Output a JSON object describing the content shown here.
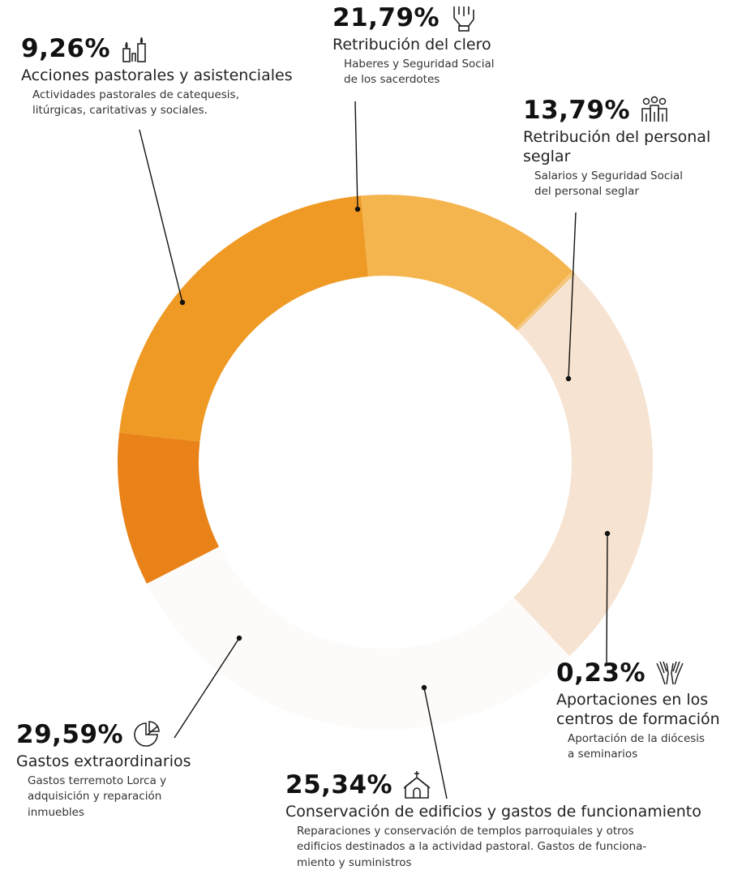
{
  "chart_data": {
    "type": "pie",
    "variant": "donut",
    "slices": [
      {
        "label": "Acciones pastorales y asistenciales",
        "value": 9.26,
        "display": "9,26%",
        "color": "#e98218",
        "description": "Actividades pastorales de catequesis, litúrgicas, caritativas y sociales.",
        "icon": "candles-icon"
      },
      {
        "label": "Retribución del clero",
        "value": 21.79,
        "display": "21,79%",
        "color": "#ef9a24",
        "description": "Haberes y Seguridad Social de los sacerdotes",
        "icon": "priest-hand-icon"
      },
      {
        "label": "Retribución del personal seglar",
        "value": 13.79,
        "display": "13,79%",
        "color": "#f4b54e",
        "description": "Salarios y Seguridad Social del personal seglar",
        "icon": "people-icon"
      },
      {
        "label": "Aportaciones en los centros de formación",
        "value": 0.23,
        "display": "0,23%",
        "color": "#f5c77e",
        "description": "Aportación de la diócesis a seminarios",
        "icon": "praying-hands-icon"
      },
      {
        "label": "Conservación de edificios y gastos de funcionamiento",
        "value": 25.34,
        "display": "25,34%",
        "color": "#f6e3d1",
        "description": "Reparaciones y conservación de templos parroquiales y otros edificios destinados a la actividad pastoral. Gastos de funcionamiento y suministros",
        "icon": "church-icon"
      },
      {
        "label": "Gastos extraordinarios",
        "value": 29.59,
        "display": "29,59%",
        "color": "#fdfbf9",
        "description": "Gastos terremoto Lorca y adquisición y reparación inmuebles",
        "icon": "pie-chart-icon"
      }
    ]
  },
  "callouts": {
    "acciones": {
      "pct": "9,26%",
      "title": "Acciones pastorales y asistenciales",
      "desc_lines": [
        "Actividades pastorales de catequesis,",
        "litúrgicas, caritativas y sociales."
      ]
    },
    "clero": {
      "pct": "21,79%",
      "title": "Retribución del clero",
      "desc_lines": [
        "Haberes y Seguridad Social",
        "de los sacerdotes"
      ]
    },
    "seglar": {
      "pct": "13,79%",
      "title_lines": [
        "Retribución del personal",
        "seglar"
      ],
      "desc_lines": [
        "Salarios y Seguridad Social",
        "del personal seglar"
      ]
    },
    "formacion": {
      "pct": "0,23%",
      "title_lines": [
        "Aportaciones en los",
        "centros de formación"
      ],
      "desc_lines": [
        "Aportación de la diócesis",
        "a seminarios"
      ]
    },
    "conservacion": {
      "pct": "25,34%",
      "title": "Conservación de edificios y gastos de  funcionamiento",
      "desc_lines": [
        "Reparaciones y conservación de templos parroquiales y otros",
        "edificios destinados a la actividad pastoral. Gastos de funciona-",
        "miento y suministros"
      ]
    },
    "extraordinarios": {
      "pct": "29,59%",
      "title": "Gastos extraordinarios",
      "desc_lines": [
        "Gastos terremoto Lorca y",
        "adquisición y reparación",
        "inmuebles"
      ]
    }
  }
}
